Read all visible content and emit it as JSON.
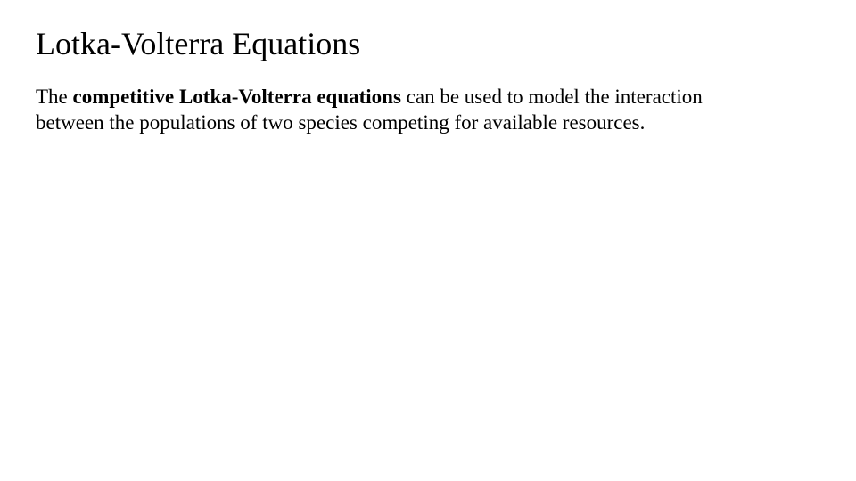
{
  "slide": {
    "title": "Lotka-Volterra Equations",
    "paragraph": {
      "pre": "The ",
      "bold": "competitive Lotka-Volterra equations",
      "post": " can be used to model the interaction between the populations of two species competing for available resources."
    }
  },
  "styling": {
    "background_color": "#ffffff",
    "text_color": "#000000",
    "font_family": "Times New Roman",
    "title_fontsize": 36,
    "body_fontsize": 23,
    "slide_width": 960,
    "slide_height": 540
  }
}
